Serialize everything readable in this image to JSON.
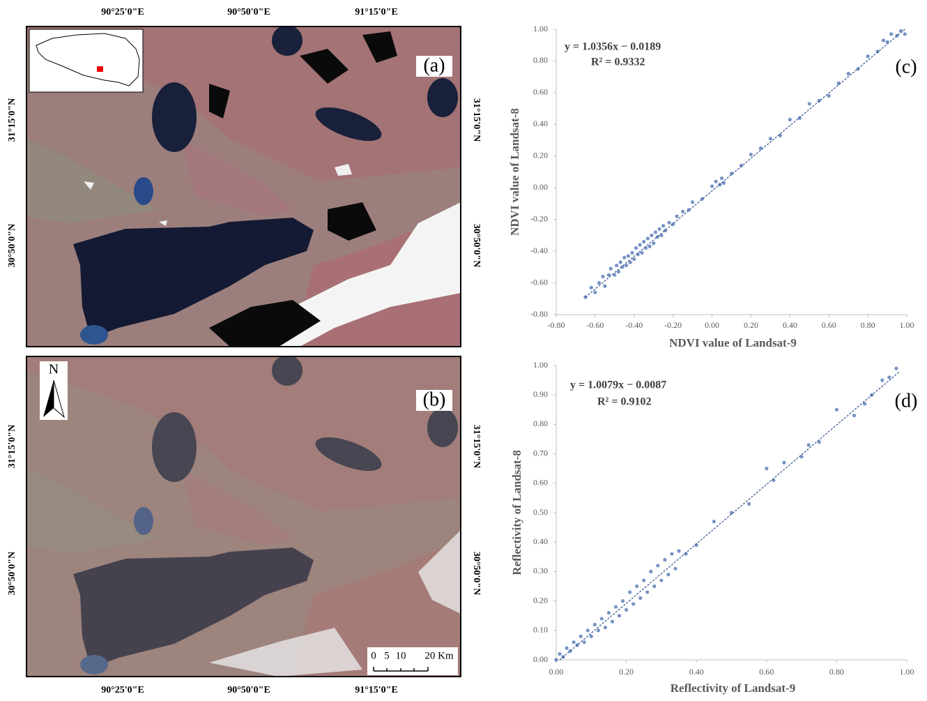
{
  "maps": {
    "panels": [
      "(a)",
      "(b)"
    ],
    "longitudes": [
      "90°25'0\"E",
      "90°50'0\"E",
      "91°15'0\"E"
    ],
    "latitudes": [
      "31°15'0\"N",
      "30°50'0\"N"
    ],
    "north": "N",
    "scale_labels": [
      "0",
      "5",
      "10",
      "20 Km"
    ]
  },
  "chart_data": [
    {
      "type": "scatter",
      "panel": "(c)",
      "equation": "y = 1.0356x − 0.0189",
      "r2": "R² = 0.9332",
      "x_label": "NDVI value  of  Landsat-9",
      "y_label": "NDVI value  of  Landsat-8",
      "color": "#4a6fb0",
      "x": [
        -0.65,
        -0.62,
        -0.6,
        -0.58,
        -0.56,
        -0.55,
        -0.53,
        -0.52,
        -0.5,
        -0.49,
        -0.48,
        -0.47,
        -0.46,
        -0.45,
        -0.44,
        -0.43,
        -0.42,
        -0.41,
        -0.4,
        -0.39,
        -0.38,
        -0.37,
        -0.36,
        -0.35,
        -0.34,
        -0.33,
        -0.32,
        -0.31,
        -0.3,
        -0.29,
        -0.28,
        -0.27,
        -0.26,
        -0.25,
        -0.24,
        -0.22,
        -0.2,
        -0.18,
        -0.15,
        -0.12,
        -0.1,
        -0.05,
        0,
        0.02,
        0.04,
        0.05,
        0.06,
        0.1,
        0.15,
        0.2,
        0.25,
        0.3,
        0.35,
        0.4,
        0.45,
        0.5,
        0.55,
        0.6,
        0.65,
        0.7,
        0.75,
        0.8,
        0.85,
        0.88,
        0.9,
        0.92,
        0.95,
        0.97,
        0.99
      ],
      "y": [
        -0.69,
        -0.63,
        -0.66,
        -0.6,
        -0.56,
        -0.62,
        -0.55,
        -0.51,
        -0.55,
        -0.49,
        -0.53,
        -0.47,
        -0.5,
        -0.44,
        -0.49,
        -0.43,
        -0.47,
        -0.41,
        -0.45,
        -0.38,
        -0.42,
        -0.36,
        -0.41,
        -0.34,
        -0.38,
        -0.32,
        -0.37,
        -0.3,
        -0.35,
        -0.28,
        -0.31,
        -0.26,
        -0.3,
        -0.24,
        -0.27,
        -0.22,
        -0.23,
        -0.18,
        -0.15,
        -0.14,
        -0.09,
        -0.07,
        0.01,
        0.04,
        0.02,
        0.06,
        0.03,
        0.09,
        0.14,
        0.21,
        0.25,
        0.31,
        0.33,
        0.43,
        0.44,
        0.53,
        0.55,
        0.58,
        0.66,
        0.72,
        0.75,
        0.83,
        0.86,
        0.93,
        0.92,
        0.97,
        0.96,
        0.99,
        0.97
      ],
      "fit_x": [
        -0.65,
        0.99
      ],
      "fit_y": [
        -0.69,
        1.0
      ],
      "xlim": [
        -0.8,
        1.0
      ],
      "ylim": [
        -0.8,
        1.0
      ],
      "xticks": [
        {
          "value": -0.8,
          "label": "-0.80"
        },
        {
          "value": -0.6,
          "label": "-0.60"
        },
        {
          "value": -0.4,
          "label": "-0.40"
        },
        {
          "value": -0.2,
          "label": "-0.20"
        },
        {
          "value": 0,
          "label": "0.00"
        },
        {
          "value": 0.2,
          "label": "0.20"
        },
        {
          "value": 0.4,
          "label": "0.40"
        },
        {
          "value": 0.6,
          "label": "0.60"
        },
        {
          "value": 0.8,
          "label": "0.80"
        },
        {
          "value": 1.0,
          "label": "1.00"
        }
      ],
      "yticks": [
        {
          "value": -0.8,
          "label": "-0.80"
        },
        {
          "value": -0.6,
          "label": "-0.60"
        },
        {
          "value": -0.4,
          "label": "-0.40"
        },
        {
          "value": -0.2,
          "label": "-0.20"
        },
        {
          "value": 0,
          "label": "0.00"
        },
        {
          "value": 0.2,
          "label": "0.20"
        },
        {
          "value": 0.4,
          "label": "0.40"
        },
        {
          "value": 0.6,
          "label": "0.60"
        },
        {
          "value": 0.8,
          "label": "0.80"
        },
        {
          "value": 1.0,
          "label": "1.00"
        }
      ]
    },
    {
      "type": "scatter",
      "panel": "(d)",
      "equation": "y = 1.0079x − 0.0087",
      "r2": "R² = 0.9102",
      "x_label": "Reflectivity of  Landsat-9",
      "y_label": "Reflectivity  of  Landsat-8",
      "color": "#4a6fb0",
      "x": [
        0,
        0.01,
        0.02,
        0.03,
        0.04,
        0.05,
        0.06,
        0.07,
        0.08,
        0.09,
        0.1,
        0.11,
        0.12,
        0.13,
        0.14,
        0.15,
        0.16,
        0.17,
        0.18,
        0.19,
        0.2,
        0.21,
        0.22,
        0.23,
        0.24,
        0.25,
        0.26,
        0.27,
        0.28,
        0.29,
        0.3,
        0.31,
        0.32,
        0.33,
        0.34,
        0.35,
        0.37,
        0.4,
        0.45,
        0.5,
        0.55,
        0.6,
        0.62,
        0.65,
        0.7,
        0.72,
        0.75,
        0.8,
        0.85,
        0.88,
        0.9,
        0.93,
        0.95,
        0.97
      ],
      "y": [
        0,
        0.02,
        0.01,
        0.04,
        0.03,
        0.06,
        0.05,
        0.08,
        0.06,
        0.1,
        0.08,
        0.12,
        0.1,
        0.14,
        0.11,
        0.16,
        0.13,
        0.18,
        0.15,
        0.2,
        0.17,
        0.23,
        0.19,
        0.25,
        0.21,
        0.27,
        0.23,
        0.3,
        0.25,
        0.32,
        0.27,
        0.34,
        0.29,
        0.36,
        0.31,
        0.37,
        0.36,
        0.39,
        0.47,
        0.5,
        0.53,
        0.65,
        0.61,
        0.67,
        0.69,
        0.73,
        0.74,
        0.85,
        0.83,
        0.87,
        0.9,
        0.95,
        0.96,
        0.99
      ],
      "fit_x": [
        0.01,
        0.98
      ],
      "fit_y": [
        0.0,
        0.98
      ],
      "xlim": [
        0,
        1.0
      ],
      "ylim": [
        0,
        1.0
      ],
      "xticks": [
        {
          "value": 0,
          "label": "0.00"
        },
        {
          "value": 0.2,
          "label": "0.20"
        },
        {
          "value": 0.4,
          "label": "0.40"
        },
        {
          "value": 0.6,
          "label": "0.60"
        },
        {
          "value": 0.8,
          "label": "0.80"
        },
        {
          "value": 1.0,
          "label": "1.00"
        }
      ],
      "yticks": [
        {
          "value": 0,
          "label": "0.00"
        },
        {
          "value": 0.1,
          "label": "0.10"
        },
        {
          "value": 0.2,
          "label": "0.20"
        },
        {
          "value": 0.3,
          "label": "0.30"
        },
        {
          "value": 0.4,
          "label": "0.40"
        },
        {
          "value": 0.5,
          "label": "0.50"
        },
        {
          "value": 0.6,
          "label": "0.60"
        },
        {
          "value": 0.7,
          "label": "0.70"
        },
        {
          "value": 0.8,
          "label": "0.80"
        },
        {
          "value": 0.9,
          "label": "0.90"
        },
        {
          "value": 1.0,
          "label": "1.00"
        }
      ]
    }
  ]
}
